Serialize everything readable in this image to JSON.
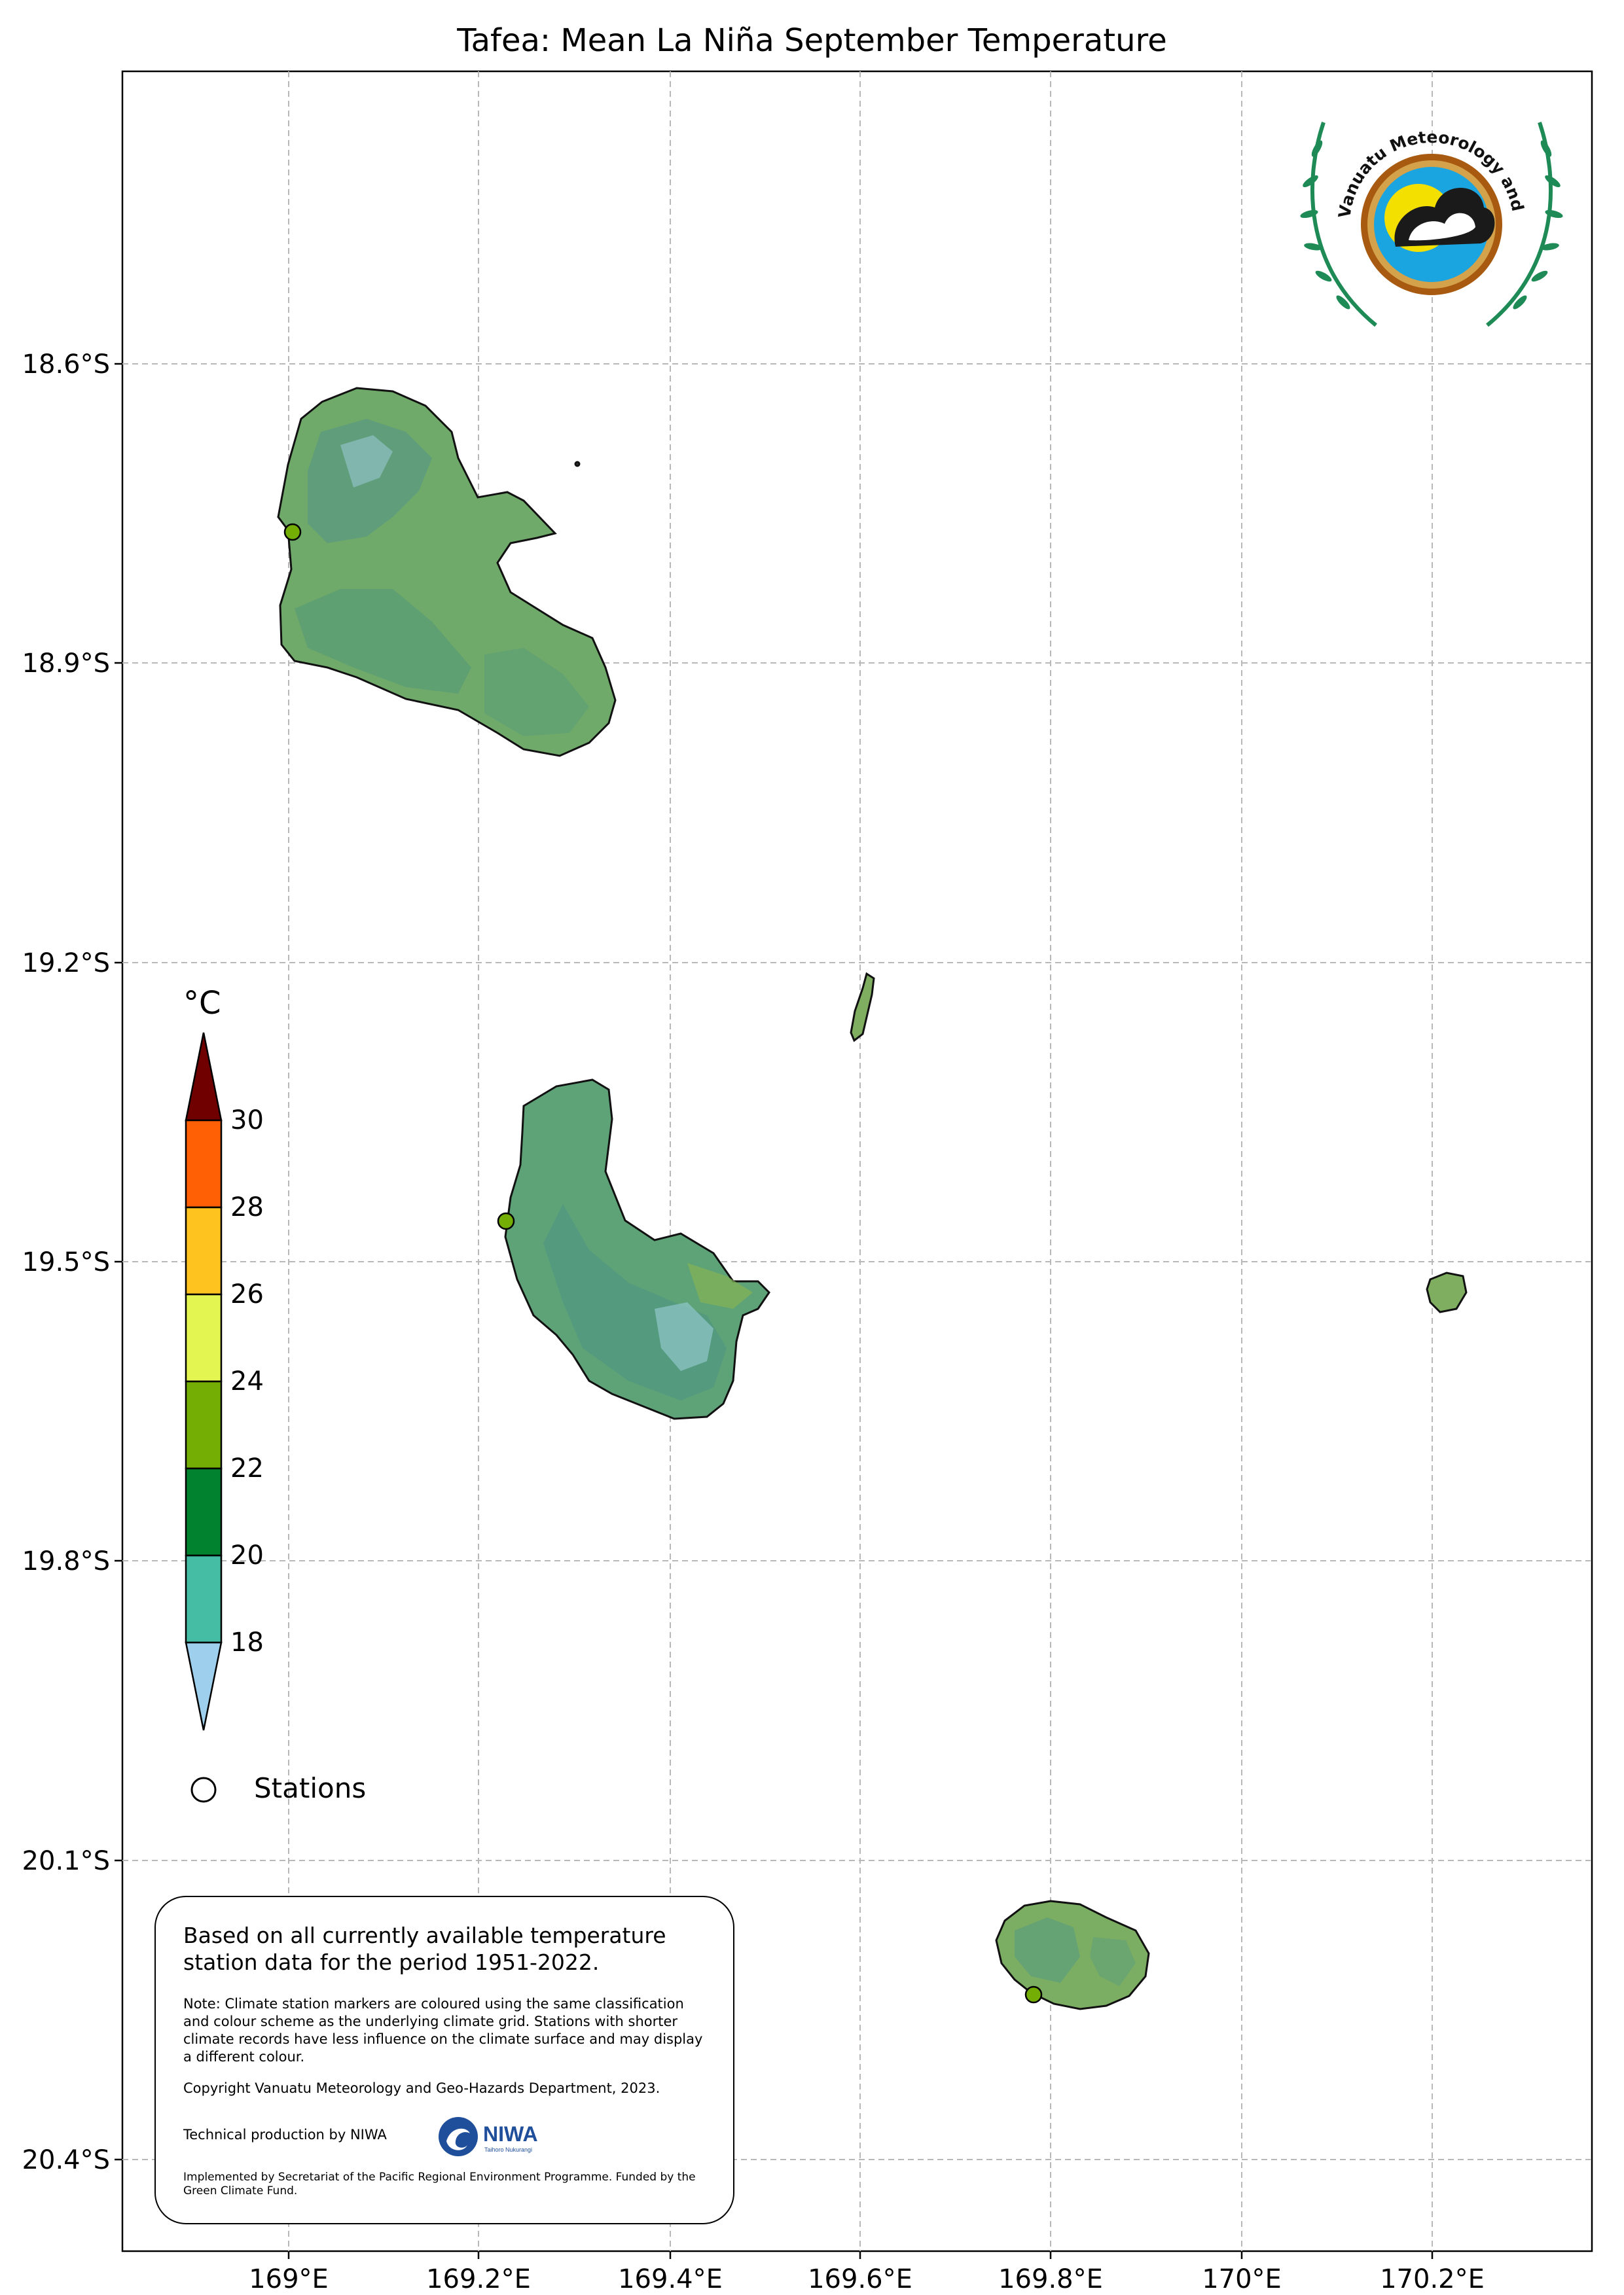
{
  "title": "Tafea: Mean La Niña September Temperature",
  "axes": {
    "lat_labels": [
      "18.6°S",
      "18.9°S",
      "19.2°S",
      "19.5°S",
      "19.8°S",
      "20.1°S",
      "20.4°S"
    ],
    "lon_labels": [
      "169°E",
      "169.2°E",
      "169.4°E",
      "169.6°E",
      "169.8°E",
      "170°E",
      "170.2°E"
    ],
    "grid": true
  },
  "legend": {
    "unit": "°C",
    "ticks": [
      "30",
      "28",
      "26",
      "24",
      "22",
      "20",
      "18"
    ],
    "bins": [
      {
        "range": "> 30",
        "color": "#700000"
      },
      {
        "range": "28–30",
        "color": "#FF6005"
      },
      {
        "range": "26–28",
        "color": "#FFC31F"
      },
      {
        "range": "24–26",
        "color": "#E3F550"
      },
      {
        "range": "22–24",
        "color": "#74AE05"
      },
      {
        "range": "20–22",
        "color": "#00822E"
      },
      {
        "range": "18–20",
        "color": "#45BCA4"
      },
      {
        "range": "< 18",
        "color": "#9ED0EE"
      }
    ],
    "stations_label": "Stations"
  },
  "islands": [
    {
      "name_icon": "erromango-island",
      "surface_color": "#6FAA6A"
    },
    {
      "name_icon": "tanna-island",
      "surface_color": "#5EA278"
    },
    {
      "name_icon": "aniwa-island",
      "surface_color": "#7FAE60"
    },
    {
      "name_icon": "futuna-island",
      "surface_color": "#7FAE60"
    },
    {
      "name_icon": "aneityum-island",
      "surface_color": "#7BAE62"
    }
  ],
  "stations": [
    {
      "color": "#74AE05"
    },
    {
      "color": "#74AE05"
    },
    {
      "color": "#74AE05"
    }
  ],
  "info": {
    "main": "Based on all currently available temperature station data for the period 1951-2022.",
    "note": "Note: Climate station markers are coloured using the same classification and colour scheme as the underlying climate grid. Stations with shorter climate records have less influence on the climate surface and may display a different colour.",
    "copyright": "Copyright Vanuatu Meteorology and Geo-Hazards Department, 2023.",
    "technical": "Technical production by NIWA",
    "funding": "Implemented by Secretariat of the Pacific Regional Environment Programme. Funded by the Green Climate Fund."
  },
  "logos": {
    "vmgd_text": "Department Vanuatu Meteorology and Geo-Hazards",
    "niwa_text": "NIWA",
    "niwa_subtext": "Taihoro Nukurangi"
  }
}
